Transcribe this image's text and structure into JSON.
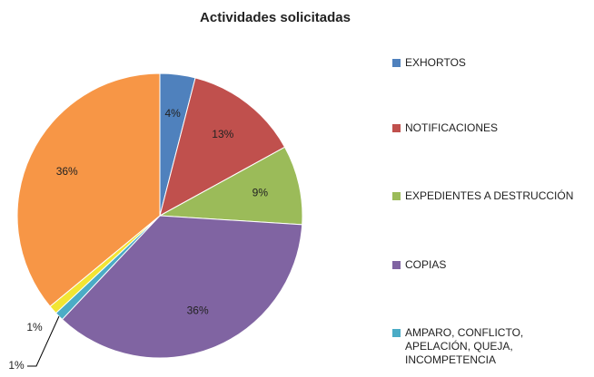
{
  "chart_data": {
    "type": "pie",
    "title": "Actividades solicitadas",
    "categories": [
      "EXHORTOS",
      "NOTIFICACIONES",
      "EXPEDIENTES A DESTRUCCIÓN",
      "COPIAS",
      "AMPARO, CONFLICTO, APELACIÓN, QUEJA, INCOMPETENCIA",
      null,
      null
    ],
    "values": [
      4,
      13,
      9,
      36,
      1,
      1,
      36
    ],
    "value_labels": [
      "4%",
      "13%",
      "9%",
      "36%",
      "1%",
      "1%",
      "36%"
    ],
    "colors": [
      "#4f81bd",
      "#c0504d",
      "#9bbb59",
      "#8064a2",
      "#4bacc6",
      "#f2e533",
      "#f79646"
    ],
    "legend": "right"
  }
}
